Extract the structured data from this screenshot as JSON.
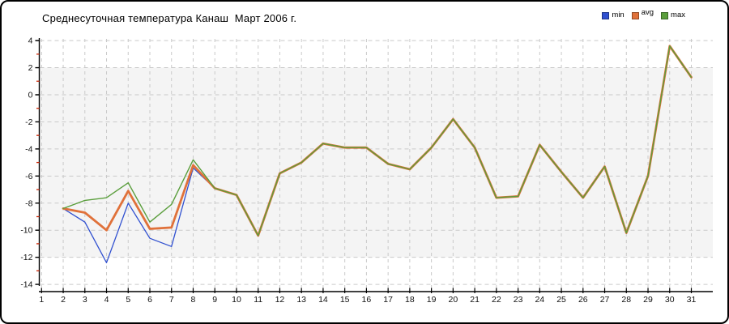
{
  "chart_data": {
    "type": "line",
    "title": "Среднесуточная температура Канаш  Март 2006 г.",
    "x": [
      1,
      2,
      3,
      4,
      5,
      6,
      7,
      8,
      9,
      10,
      11,
      12,
      13,
      14,
      15,
      16,
      17,
      18,
      19,
      20,
      21,
      22,
      23,
      24,
      25,
      26,
      27,
      28,
      29,
      30,
      31
    ],
    "xlabel": "",
    "ylabel": "",
    "ylim": [
      -14,
      4
    ],
    "ytick_major": 2,
    "ytick_minor": 1,
    "grid": "dashed",
    "legend_position": "top-right",
    "series": [
      {
        "name": "min",
        "color": "#3050d0",
        "values": [
          null,
          -8.4,
          -9.4,
          -12.4,
          -8.0,
          -10.6,
          -11.2,
          -5.4,
          -6.9,
          -7.4,
          -10.4,
          -5.8,
          -5.0,
          -3.6,
          -3.9,
          -3.9,
          -5.1,
          -5.5,
          -3.9,
          -1.8,
          -3.9,
          -7.6,
          -7.5,
          -3.7,
          -5.7,
          -7.6,
          -5.3,
          -10.2,
          -6.0,
          3.6,
          1.3
        ]
      },
      {
        "name": "avg",
        "color": "#e0713a",
        "values": [
          null,
          -8.4,
          -8.7,
          -10.0,
          -7.1,
          -9.9,
          -9.8,
          -5.2,
          -6.9,
          -7.4,
          -10.4,
          -5.8,
          -5.0,
          -3.6,
          -3.9,
          -3.9,
          -5.1,
          -5.5,
          -3.9,
          -1.8,
          -3.9,
          -7.6,
          -7.5,
          -3.7,
          -5.7,
          -7.6,
          -5.3,
          -10.2,
          -6.0,
          3.6,
          1.3
        ]
      },
      {
        "name": "max",
        "color": "#5a9e3c",
        "values": [
          null,
          -8.4,
          -7.8,
          -7.6,
          -6.5,
          -9.4,
          -8.1,
          -4.8,
          -6.9,
          -7.4,
          -10.4,
          -5.8,
          -5.0,
          -3.6,
          -3.9,
          -3.9,
          -5.1,
          -5.5,
          -3.9,
          -1.8,
          -3.9,
          -7.6,
          -7.5,
          -3.7,
          -5.7,
          -7.6,
          -5.3,
          -10.2,
          -6.0,
          3.6,
          1.3
        ]
      }
    ],
    "colors": {
      "axis": "#000000",
      "grid": "#c9c9c9",
      "minor_tick": "#cc2200",
      "plot_band": "#f4f4f4",
      "tick_label": "#111111"
    }
  }
}
